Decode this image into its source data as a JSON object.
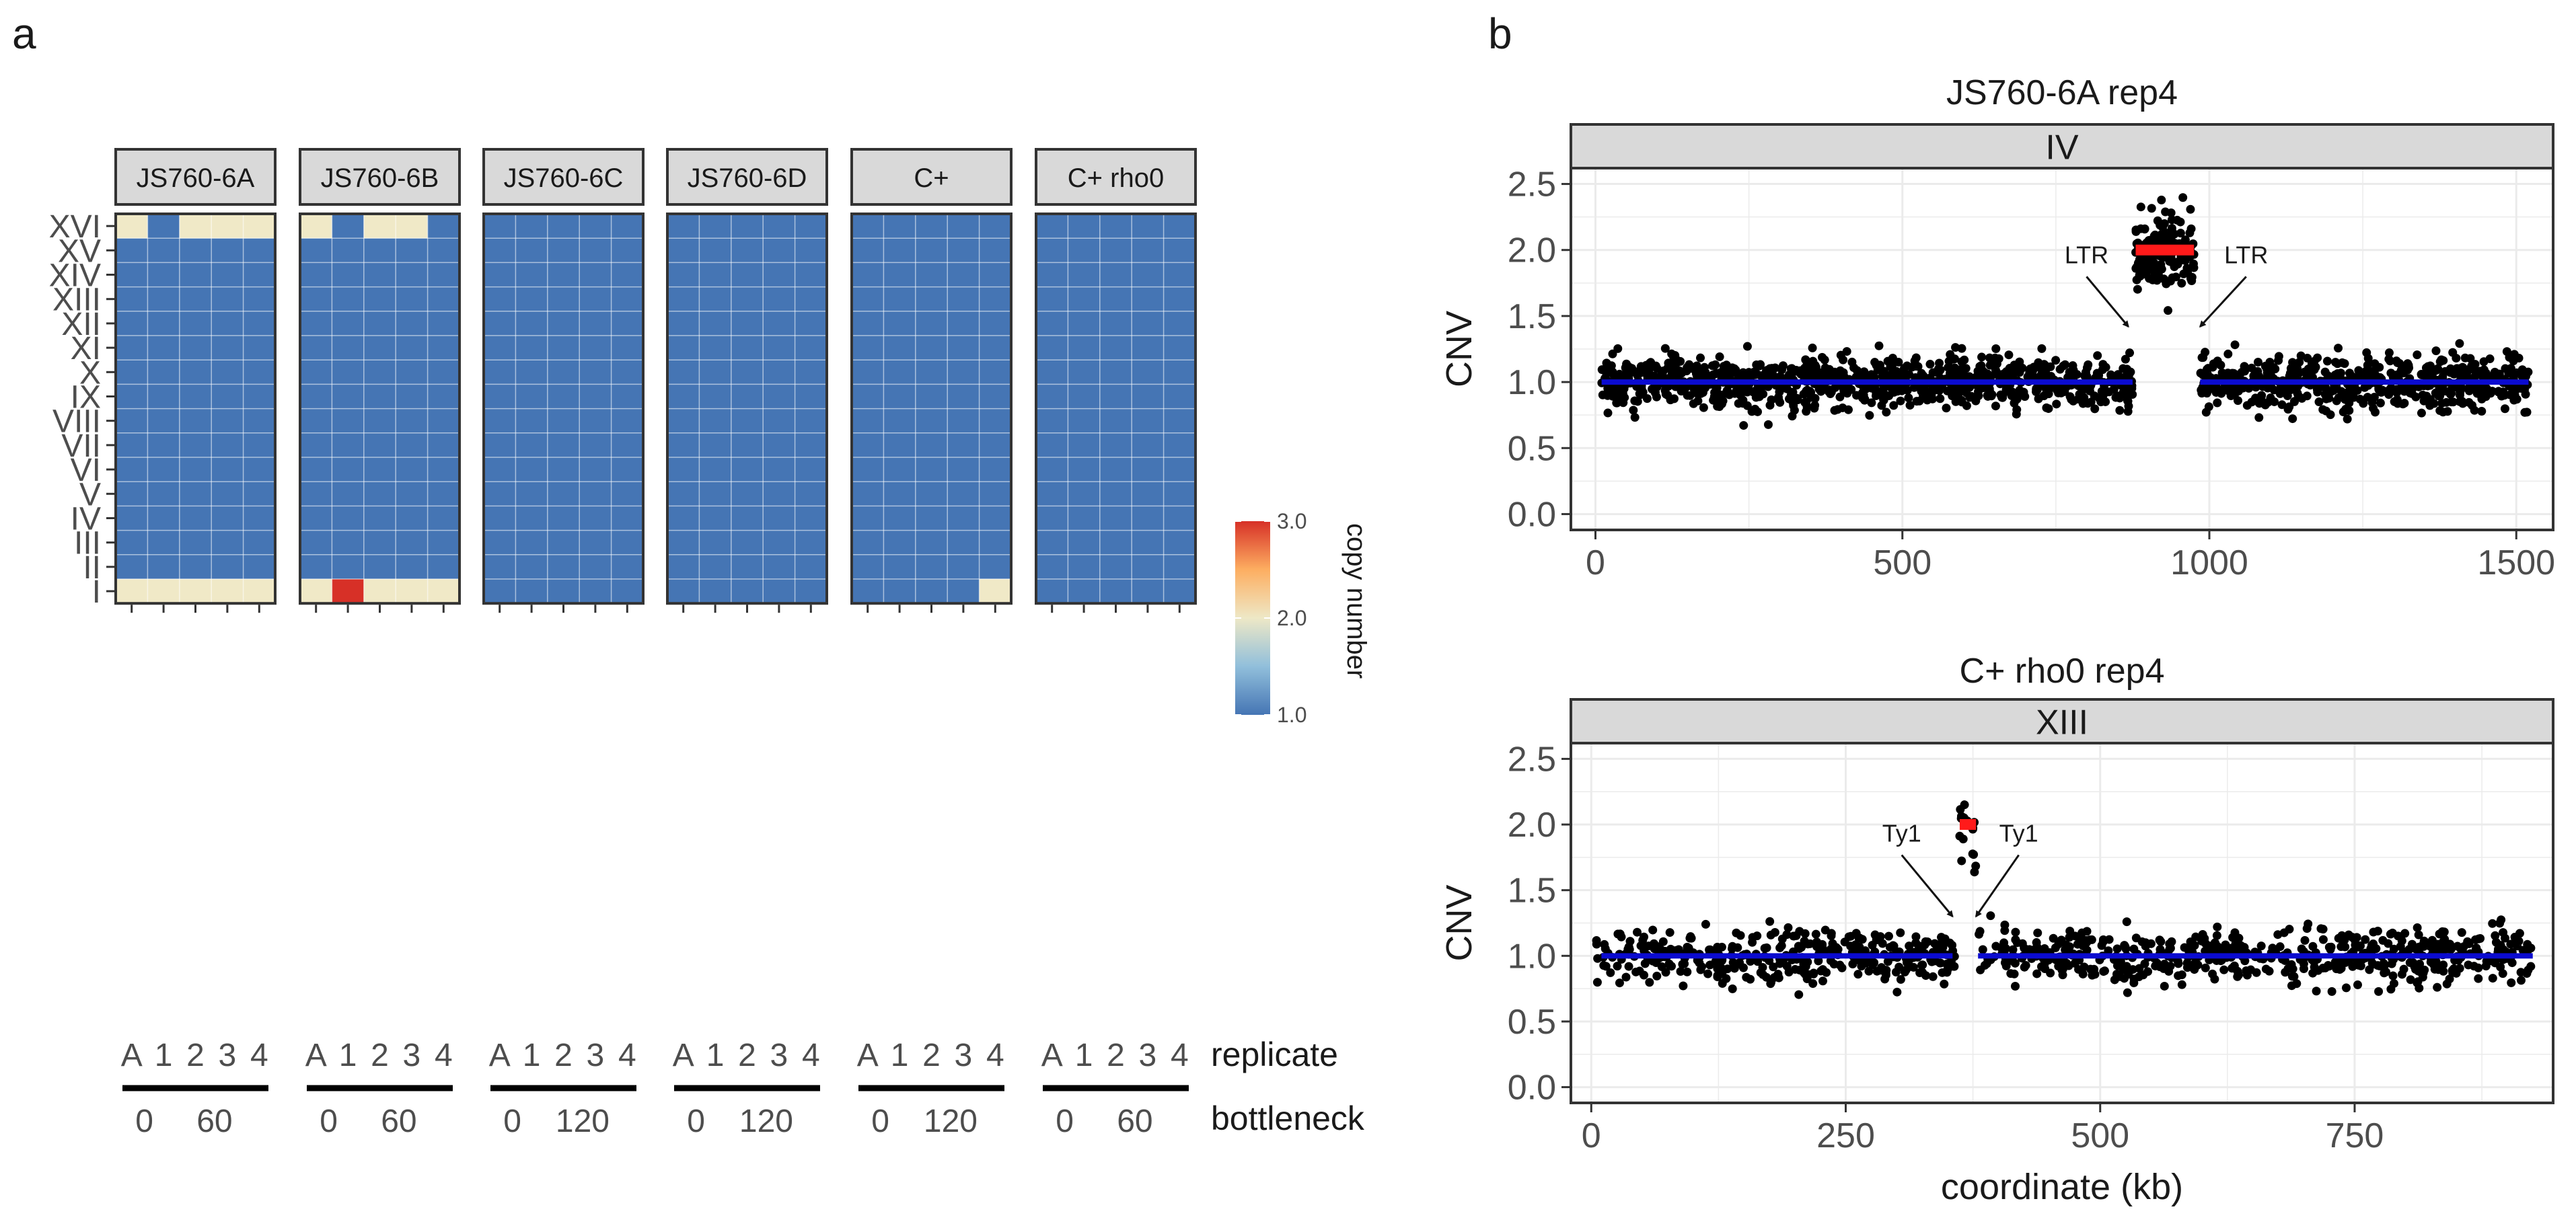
{
  "figure": {
    "panel_a_label": "a",
    "panel_b_label": "b"
  },
  "chart_data": [
    {
      "type": "heatmap",
      "panel": "a",
      "strips": [
        "JS760-6A",
        "JS760-6B",
        "JS760-6C",
        "JS760-6D",
        "C+",
        "C+ rho0"
      ],
      "rows": [
        "XVI",
        "XV",
        "XIV",
        "XIII",
        "XII",
        "XI",
        "X",
        "IX",
        "VIII",
        "VII",
        "VI",
        "V",
        "IV",
        "III",
        "II",
        "I"
      ],
      "columns": [
        "A",
        "1",
        "2",
        "3",
        "4"
      ],
      "values": [
        [
          [
            2,
            1,
            2,
            2,
            2
          ],
          [
            1,
            1,
            1,
            1,
            1
          ],
          [
            1,
            1,
            1,
            1,
            1
          ],
          [
            1,
            1,
            1,
            1,
            1
          ],
          [
            1,
            1,
            1,
            1,
            1
          ],
          [
            1,
            1,
            1,
            1,
            1
          ],
          [
            1,
            1,
            1,
            1,
            1
          ],
          [
            1,
            1,
            1,
            1,
            1
          ],
          [
            1,
            1,
            1,
            1,
            1
          ],
          [
            1,
            1,
            1,
            1,
            1
          ],
          [
            1,
            1,
            1,
            1,
            1
          ],
          [
            1,
            1,
            1,
            1,
            1
          ],
          [
            1,
            1,
            1,
            1,
            1
          ],
          [
            1,
            1,
            1,
            1,
            1
          ],
          [
            1,
            1,
            1,
            1,
            1
          ],
          [
            2,
            2,
            2,
            2,
            2
          ]
        ],
        [
          [
            2,
            1,
            2,
            2,
            1
          ],
          [
            1,
            1,
            1,
            1,
            1
          ],
          [
            1,
            1,
            1,
            1,
            1
          ],
          [
            1,
            1,
            1,
            1,
            1
          ],
          [
            1,
            1,
            1,
            1,
            1
          ],
          [
            1,
            1,
            1,
            1,
            1
          ],
          [
            1,
            1,
            1,
            1,
            1
          ],
          [
            1,
            1,
            1,
            1,
            1
          ],
          [
            1,
            1,
            1,
            1,
            1
          ],
          [
            1,
            1,
            1,
            1,
            1
          ],
          [
            1,
            1,
            1,
            1,
            1
          ],
          [
            1,
            1,
            1,
            1,
            1
          ],
          [
            1,
            1,
            1,
            1,
            1
          ],
          [
            1,
            1,
            1,
            1,
            1
          ],
          [
            1,
            1,
            1,
            1,
            1
          ],
          [
            2,
            3,
            2,
            2,
            2
          ]
        ],
        [
          [
            1,
            1,
            1,
            1,
            1
          ],
          [
            1,
            1,
            1,
            1,
            1
          ],
          [
            1,
            1,
            1,
            1,
            1
          ],
          [
            1,
            1,
            1,
            1,
            1
          ],
          [
            1,
            1,
            1,
            1,
            1
          ],
          [
            1,
            1,
            1,
            1,
            1
          ],
          [
            1,
            1,
            1,
            1,
            1
          ],
          [
            1,
            1,
            1,
            1,
            1
          ],
          [
            1,
            1,
            1,
            1,
            1
          ],
          [
            1,
            1,
            1,
            1,
            1
          ],
          [
            1,
            1,
            1,
            1,
            1
          ],
          [
            1,
            1,
            1,
            1,
            1
          ],
          [
            1,
            1,
            1,
            1,
            1
          ],
          [
            1,
            1,
            1,
            1,
            1
          ],
          [
            1,
            1,
            1,
            1,
            1
          ],
          [
            1,
            1,
            1,
            1,
            1
          ]
        ],
        [
          [
            1,
            1,
            1,
            1,
            1
          ],
          [
            1,
            1,
            1,
            1,
            1
          ],
          [
            1,
            1,
            1,
            1,
            1
          ],
          [
            1,
            1,
            1,
            1,
            1
          ],
          [
            1,
            1,
            1,
            1,
            1
          ],
          [
            1,
            1,
            1,
            1,
            1
          ],
          [
            1,
            1,
            1,
            1,
            1
          ],
          [
            1,
            1,
            1,
            1,
            1
          ],
          [
            1,
            1,
            1,
            1,
            1
          ],
          [
            1,
            1,
            1,
            1,
            1
          ],
          [
            1,
            1,
            1,
            1,
            1
          ],
          [
            1,
            1,
            1,
            1,
            1
          ],
          [
            1,
            1,
            1,
            1,
            1
          ],
          [
            1,
            1,
            1,
            1,
            1
          ],
          [
            1,
            1,
            1,
            1,
            1
          ],
          [
            1,
            1,
            1,
            1,
            1
          ]
        ],
        [
          [
            1,
            1,
            1,
            1,
            1
          ],
          [
            1,
            1,
            1,
            1,
            1
          ],
          [
            1,
            1,
            1,
            1,
            1
          ],
          [
            1,
            1,
            1,
            1,
            1
          ],
          [
            1,
            1,
            1,
            1,
            1
          ],
          [
            1,
            1,
            1,
            1,
            1
          ],
          [
            1,
            1,
            1,
            1,
            1
          ],
          [
            1,
            1,
            1,
            1,
            1
          ],
          [
            1,
            1,
            1,
            1,
            1
          ],
          [
            1,
            1,
            1,
            1,
            1
          ],
          [
            1,
            1,
            1,
            1,
            1
          ],
          [
            1,
            1,
            1,
            1,
            1
          ],
          [
            1,
            1,
            1,
            1,
            1
          ],
          [
            1,
            1,
            1,
            1,
            1
          ],
          [
            1,
            1,
            1,
            1,
            1
          ],
          [
            1,
            1,
            1,
            1,
            2
          ]
        ],
        [
          [
            1,
            1,
            1,
            1,
            1
          ],
          [
            1,
            1,
            1,
            1,
            1
          ],
          [
            1,
            1,
            1,
            1,
            1
          ],
          [
            1,
            1,
            1,
            1,
            1
          ],
          [
            1,
            1,
            1,
            1,
            1
          ],
          [
            1,
            1,
            1,
            1,
            1
          ],
          [
            1,
            1,
            1,
            1,
            1
          ],
          [
            1,
            1,
            1,
            1,
            1
          ],
          [
            1,
            1,
            1,
            1,
            1
          ],
          [
            1,
            1,
            1,
            1,
            1
          ],
          [
            1,
            1,
            1,
            1,
            1
          ],
          [
            1,
            1,
            1,
            1,
            1
          ],
          [
            1,
            1,
            1,
            1,
            1
          ],
          [
            1,
            1,
            1,
            1,
            1
          ],
          [
            1,
            1,
            1,
            1,
            1
          ],
          [
            1,
            1,
            1,
            1,
            1
          ]
        ]
      ],
      "bottleneck_labels": [
        [
          "0",
          "60"
        ],
        [
          "0",
          "60"
        ],
        [
          "0",
          "120"
        ],
        [
          "0",
          "120"
        ],
        [
          "0",
          "120"
        ],
        [
          "0",
          "60"
        ]
      ],
      "xlabel_replicate": "replicate",
      "xlabel_bottleneck": "bottleneck",
      "legend": {
        "title": "copy number",
        "min": 1.0,
        "max": 3.0,
        "ticks": [
          "1.0",
          "2.0",
          "3.0"
        ],
        "colors": [
          "#4575b4",
          "#91bfdb",
          "#eee8c6",
          "#fdae61",
          "#d73027"
        ]
      },
      "cell_colors": {
        "1": "#4575b4",
        "2": "#f0e9c7",
        "3": "#d73027"
      }
    },
    {
      "type": "scatter",
      "panel": "b-top",
      "title": "JS760-6A rep4",
      "strip": "IV",
      "xlabel": "",
      "ylabel": "CNV",
      "xlim": [
        -40,
        1560
      ],
      "ylim": [
        -0.12,
        2.62
      ],
      "xticks": [
        "0",
        "500",
        "1000",
        "1500"
      ],
      "yticks": [
        "0.0",
        "0.5",
        "1.0",
        "1.5",
        "2.0",
        "2.5"
      ],
      "chromosome_length_kb": 1520,
      "segments": [
        {
          "x_start": 10,
          "x_end": 875,
          "y": 1.0,
          "color": "#0b0bd0"
        },
        {
          "x_start": 880,
          "x_end": 975,
          "y": 2.0,
          "color": "#ff1a1a"
        },
        {
          "x_start": 985,
          "x_end": 1520,
          "y": 1.0,
          "color": "#0b0bd0"
        }
      ],
      "point_groups": [
        {
          "x_start": 10,
          "x_end": 875,
          "mean": 1.0,
          "spread": 0.1,
          "n": 900
        },
        {
          "x_start": 880,
          "x_end": 975,
          "mean": 2.0,
          "spread": 0.14,
          "n": 170
        },
        {
          "x_start": 985,
          "x_end": 1520,
          "mean": 1.0,
          "spread": 0.1,
          "n": 560
        }
      ],
      "annotations": [
        {
          "text": "LTR",
          "x": 800,
          "y": 1.9,
          "arrow_to_x": 868,
          "arrow_to_y": 1.42
        },
        {
          "text": "LTR",
          "x": 1060,
          "y": 1.9,
          "arrow_to_x": 985,
          "arrow_to_y": 1.42
        }
      ]
    },
    {
      "type": "scatter",
      "panel": "b-bottom",
      "title": "C+ rho0 rep4",
      "strip": "XIII",
      "xlabel": "coordinate (kb)",
      "ylabel": "CNV",
      "xlim": [
        -20,
        945
      ],
      "ylim": [
        -0.12,
        2.62
      ],
      "xticks": [
        "0",
        "250",
        "500",
        "750"
      ],
      "yticks": [
        "0.0",
        "0.5",
        "1.0",
        "1.5",
        "2.0",
        "2.5"
      ],
      "chromosome_length_kb": 925,
      "segments": [
        {
          "x_start": 10,
          "x_end": 355,
          "y": 1.0,
          "color": "#0b0bd0"
        },
        {
          "x_start": 362,
          "x_end": 378,
          "y": 2.0,
          "color": "#ff1a1a"
        },
        {
          "x_start": 380,
          "x_end": 925,
          "y": 1.0,
          "color": "#0b0bd0"
        }
      ],
      "point_groups": [
        {
          "x_start": 5,
          "x_end": 357,
          "mean": 1.0,
          "spread": 0.1,
          "n": 360
        },
        {
          "x_start": 362,
          "x_end": 378,
          "mean": 2.0,
          "spread": 0.14,
          "n": 16
        },
        {
          "x_start": 380,
          "x_end": 925,
          "mean": 1.0,
          "spread": 0.1,
          "n": 560
        }
      ],
      "annotations": [
        {
          "text": "Ty1",
          "x": 305,
          "y": 1.87,
          "arrow_to_x": 355,
          "arrow_to_y": 1.3
        },
        {
          "text": "Ty1",
          "x": 420,
          "y": 1.87,
          "arrow_to_x": 378,
          "arrow_to_y": 1.3
        }
      ]
    }
  ]
}
